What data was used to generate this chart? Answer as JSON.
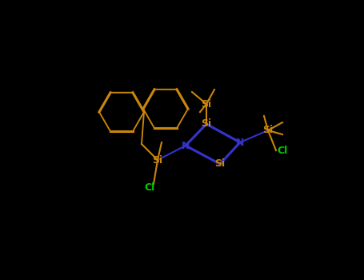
{
  "smiles": "Cl[Si](C)(C)[N]1[Si](C)(C)[N]([Si](Cl)(c2ccccc2)c2ccccc2)[Si]1(C)C",
  "background_color": "#000000",
  "si_color": "#c8860a",
  "n_color": "#3333cc",
  "cl_color": "#00cc00",
  "c_color": "#c8860a",
  "bond_color": "#c8860a",
  "line_width": 1.5,
  "figsize": [
    4.55,
    3.5
  ],
  "dpi": 100
}
